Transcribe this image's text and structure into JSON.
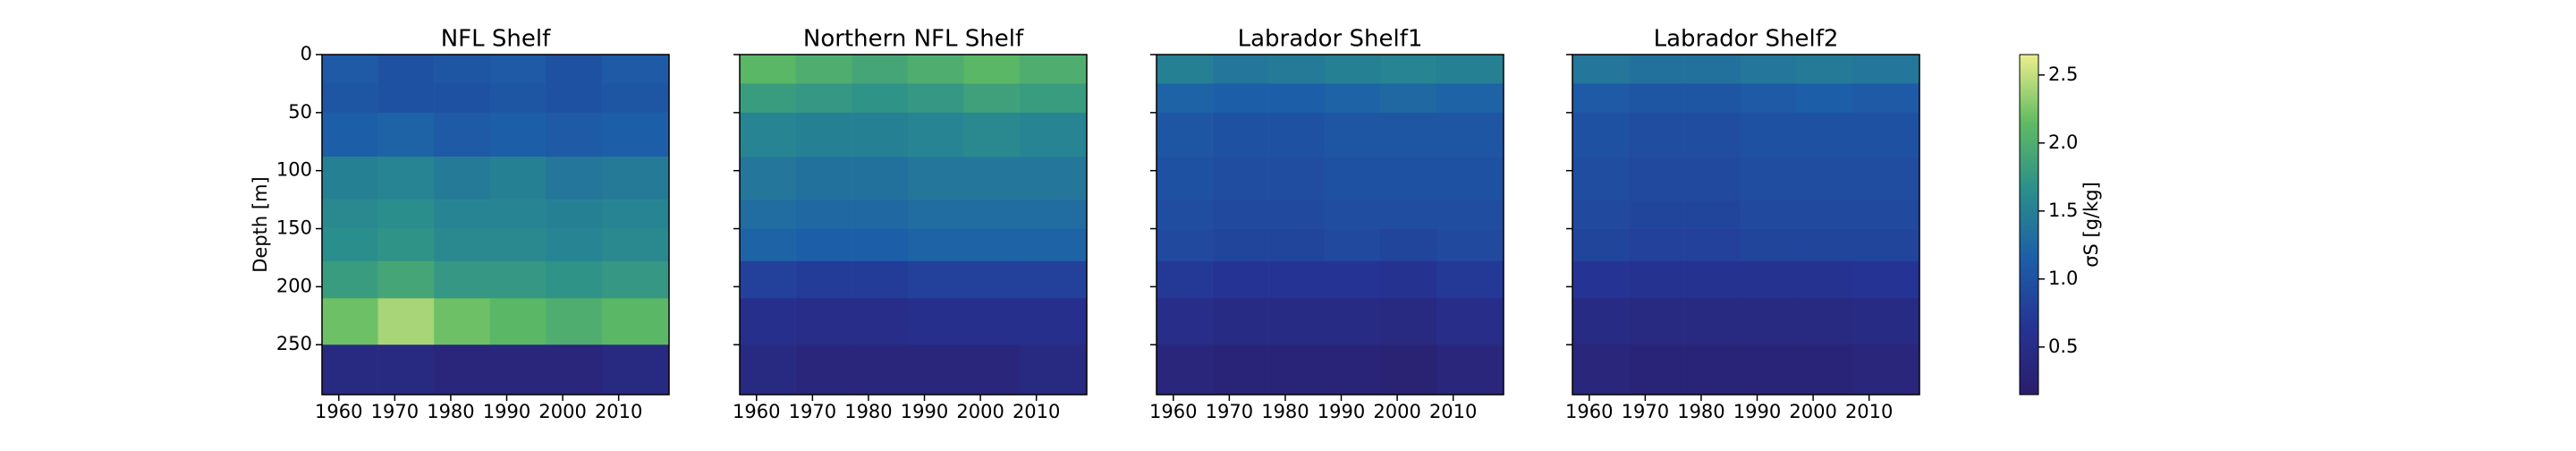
{
  "chart_data": [
    {
      "type": "heatmap",
      "title": "NFL Shelf",
      "ylabel": "Depth [m]",
      "xbins": [
        1957,
        1967,
        1977,
        1987,
        1997,
        2007,
        2019
      ],
      "ybins": [
        0,
        25,
        50,
        88,
        125,
        150,
        178,
        210,
        250,
        293
      ],
      "xlim": [
        1957,
        2019
      ],
      "ylim": [
        293,
        0
      ],
      "xticks": [
        1960,
        1970,
        1980,
        1990,
        2000,
        2010
      ],
      "yticks": [
        0,
        50,
        100,
        150,
        200,
        250
      ],
      "values": [
        [
          1.1,
          1.0,
          1.05,
          1.1,
          1.0,
          1.1
        ],
        [
          1.05,
          1.0,
          1.0,
          1.05,
          1.0,
          1.05
        ],
        [
          1.15,
          1.2,
          1.1,
          1.15,
          1.1,
          1.15
        ],
        [
          1.5,
          1.55,
          1.45,
          1.5,
          1.4,
          1.45
        ],
        [
          1.6,
          1.65,
          1.55,
          1.55,
          1.5,
          1.55
        ],
        [
          1.65,
          1.7,
          1.6,
          1.6,
          1.55,
          1.6
        ],
        [
          1.8,
          1.9,
          1.75,
          1.75,
          1.7,
          1.75
        ],
        [
          2.2,
          2.4,
          2.2,
          2.1,
          2.0,
          2.1
        ],
        [
          0.4,
          0.4,
          0.35,
          0.35,
          0.35,
          0.4
        ]
      ]
    },
    {
      "type": "heatmap",
      "title": "Northern NFL Shelf",
      "xbins": [
        1957,
        1967,
        1977,
        1987,
        1997,
        2007,
        2019
      ],
      "ybins": [
        0,
        25,
        50,
        88,
        125,
        150,
        178,
        210,
        250,
        293
      ],
      "xlim": [
        1957,
        2019
      ],
      "ylim": [
        293,
        0
      ],
      "xticks": [
        1960,
        1970,
        1980,
        1990,
        2000,
        2010
      ],
      "yticks": [
        0,
        50,
        100,
        150,
        200,
        250
      ],
      "values": [
        [
          2.1,
          2.0,
          1.9,
          2.0,
          2.1,
          2.0
        ],
        [
          1.8,
          1.75,
          1.7,
          1.75,
          1.85,
          1.8
        ],
        [
          1.55,
          1.5,
          1.5,
          1.55,
          1.6,
          1.55
        ],
        [
          1.4,
          1.35,
          1.35,
          1.4,
          1.4,
          1.4
        ],
        [
          1.3,
          1.25,
          1.25,
          1.3,
          1.3,
          1.3
        ],
        [
          1.2,
          1.15,
          1.15,
          1.2,
          1.2,
          1.2
        ],
        [
          0.8,
          0.75,
          0.75,
          0.8,
          0.8,
          0.8
        ],
        [
          0.55,
          0.5,
          0.5,
          0.55,
          0.55,
          0.55
        ],
        [
          0.4,
          0.35,
          0.35,
          0.35,
          0.35,
          0.4
        ]
      ]
    },
    {
      "type": "heatmap",
      "title": "Labrador Shelf1",
      "xbins": [
        1957,
        1967,
        1977,
        1987,
        1997,
        2007,
        2019
      ],
      "ybins": [
        0,
        25,
        50,
        88,
        125,
        150,
        178,
        210,
        250,
        293
      ],
      "xlim": [
        1957,
        2019
      ],
      "ylim": [
        293,
        0
      ],
      "xticks": [
        1960,
        1970,
        1980,
        1990,
        2000,
        2010
      ],
      "yticks": [
        0,
        50,
        100,
        150,
        200,
        250
      ],
      "values": [
        [
          1.5,
          1.4,
          1.45,
          1.5,
          1.55,
          1.5
        ],
        [
          1.2,
          1.15,
          1.15,
          1.2,
          1.25,
          1.2
        ],
        [
          1.05,
          1.0,
          1.0,
          1.05,
          1.05,
          1.05
        ],
        [
          1.0,
          0.95,
          0.95,
          1.0,
          1.0,
          1.0
        ],
        [
          0.95,
          0.9,
          0.9,
          0.95,
          0.95,
          0.95
        ],
        [
          0.9,
          0.85,
          0.85,
          0.9,
          0.85,
          0.9
        ],
        [
          0.7,
          0.65,
          0.65,
          0.65,
          0.6,
          0.7
        ],
        [
          0.5,
          0.45,
          0.45,
          0.45,
          0.4,
          0.5
        ],
        [
          0.35,
          0.3,
          0.3,
          0.3,
          0.25,
          0.35
        ]
      ]
    },
    {
      "type": "heatmap",
      "title": "Labrador Shelf2",
      "xbins": [
        1957,
        1967,
        1977,
        1987,
        1997,
        2007,
        2019
      ],
      "ybins": [
        0,
        25,
        50,
        88,
        125,
        150,
        178,
        210,
        250,
        293
      ],
      "xlim": [
        1957,
        2019
      ],
      "ylim": [
        293,
        0
      ],
      "xticks": [
        1960,
        1970,
        1980,
        1990,
        2000,
        2010
      ],
      "yticks": [
        0,
        50,
        100,
        150,
        200,
        250
      ],
      "values": [
        [
          1.4,
          1.35,
          1.35,
          1.4,
          1.45,
          1.4
        ],
        [
          1.1,
          1.05,
          1.05,
          1.1,
          1.15,
          1.1
        ],
        [
          1.0,
          0.95,
          0.95,
          1.0,
          1.0,
          1.0
        ],
        [
          0.95,
          0.9,
          0.9,
          0.95,
          0.95,
          0.95
        ],
        [
          0.9,
          0.85,
          0.85,
          0.9,
          0.9,
          0.9
        ],
        [
          0.85,
          0.8,
          0.8,
          0.85,
          0.85,
          0.85
        ],
        [
          0.65,
          0.6,
          0.6,
          0.6,
          0.6,
          0.65
        ],
        [
          0.45,
          0.4,
          0.4,
          0.4,
          0.4,
          0.45
        ],
        [
          0.35,
          0.3,
          0.3,
          0.3,
          0.3,
          0.35
        ]
      ]
    }
  ],
  "colorbar": {
    "label": "σS [g/kg]",
    "clim": [
      0.15,
      2.65
    ],
    "ticks": [
      0.5,
      {
        "value": 1,
        "label": "1.0"
      },
      1.5,
      {
        "value": 2,
        "label": "2.0"
      },
      2.5
    ],
    "colors": [
      "#2b1d6b",
      "#253494",
      "#1d5ea8",
      "#2a8e8c",
      "#5fbb62",
      "#eeee8c"
    ]
  }
}
